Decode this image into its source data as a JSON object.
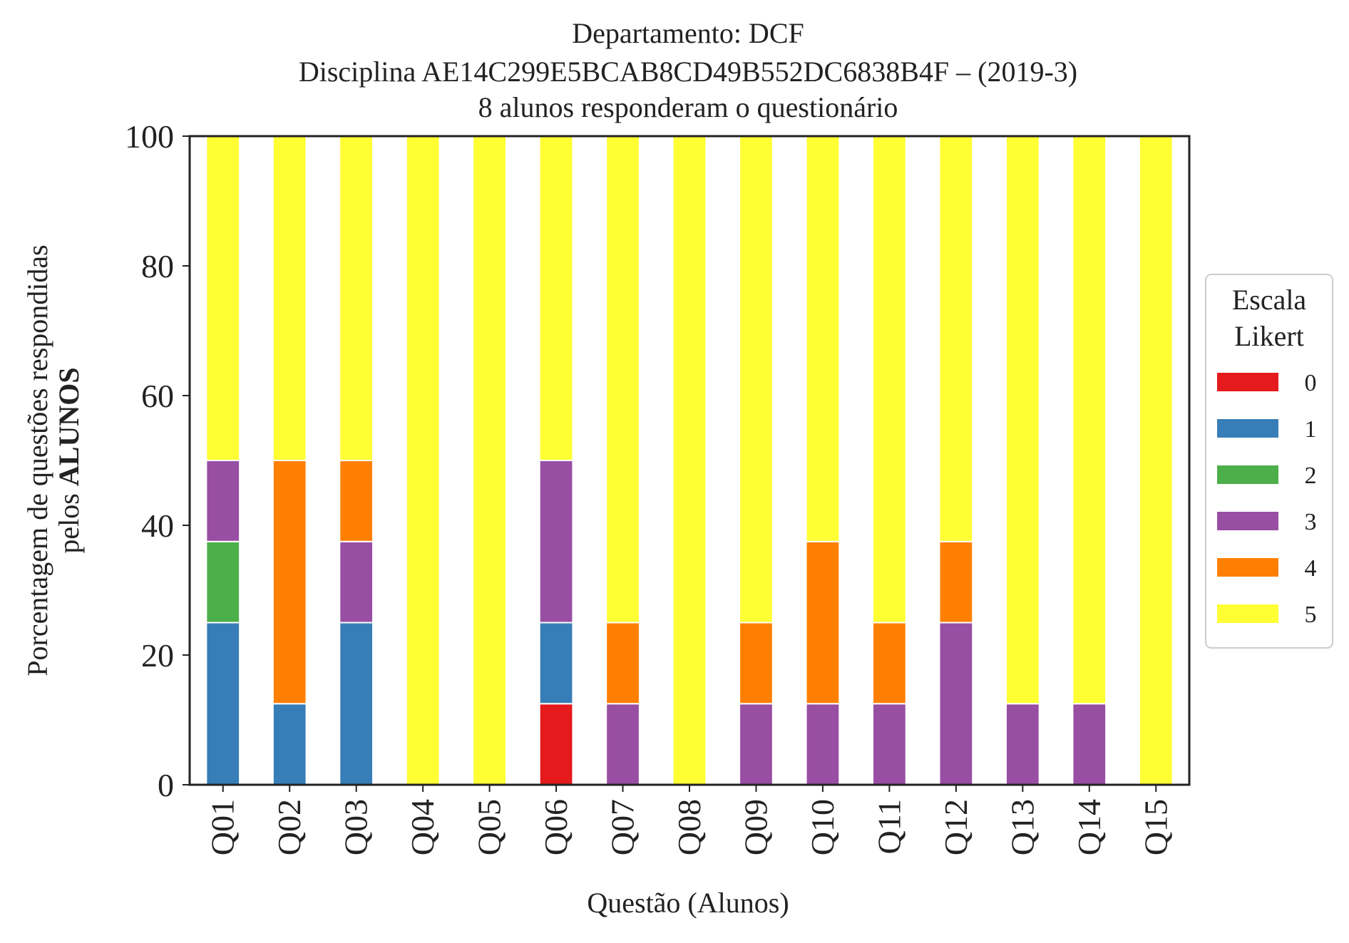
{
  "chart_data": {
    "type": "bar",
    "stacked": true,
    "title_lines": [
      "Departamento: DCF",
      "Disciplina AE14C299E5BCAB8CD49B552DC6838B4F – (2019-3)",
      "8 alunos responderam o questionário"
    ],
    "xlabel": "Questão (Alunos)",
    "ylabel_line1": "Porcentagem de questões respondidas",
    "ylabel_line2_prefix": "pelos ",
    "ylabel_line2_bold": "ALUNOS",
    "ylim": [
      0,
      100
    ],
    "yticks": [
      "0",
      "20",
      "40",
      "60",
      "80",
      "100"
    ],
    "grid": false,
    "legend": {
      "title_line1": "Escala",
      "title_line2": "Likert",
      "placement": "center-right, outside"
    },
    "categories": [
      "Q01",
      "Q02",
      "Q03",
      "Q04",
      "Q05",
      "Q06",
      "Q07",
      "Q08",
      "Q09",
      "Q10",
      "Q11",
      "Q12",
      "Q13",
      "Q14",
      "Q15"
    ],
    "series": [
      {
        "name": "0",
        "color": "#e41a1c",
        "values": [
          0,
          0,
          0,
          0,
          0,
          12.5,
          0,
          0,
          0,
          0,
          0,
          0,
          0,
          0,
          0
        ]
      },
      {
        "name": "1",
        "color": "#377eb8",
        "values": [
          25,
          12.5,
          25,
          0,
          0,
          12.5,
          0,
          0,
          0,
          0,
          0,
          0,
          0,
          0,
          0
        ]
      },
      {
        "name": "2",
        "color": "#4daf4a",
        "values": [
          12.5,
          0,
          0,
          0,
          0,
          0,
          0,
          0,
          0,
          0,
          0,
          0,
          0,
          0,
          0
        ]
      },
      {
        "name": "3",
        "color": "#984ea3",
        "values": [
          12.5,
          0,
          12.5,
          0,
          0,
          25,
          12.5,
          0,
          12.5,
          12.5,
          12.5,
          25,
          12.5,
          12.5,
          0
        ]
      },
      {
        "name": "4",
        "color": "#ff7f00",
        "values": [
          0,
          37.5,
          12.5,
          0,
          0,
          0,
          12.5,
          0,
          12.5,
          25,
          12.5,
          12.5,
          0,
          0,
          0
        ]
      },
      {
        "name": "5",
        "color": "#ffff33",
        "values": [
          50,
          50,
          50,
          100,
          100,
          50,
          75,
          100,
          75,
          62.5,
          75,
          62.5,
          87.5,
          87.5,
          100
        ]
      }
    ]
  }
}
